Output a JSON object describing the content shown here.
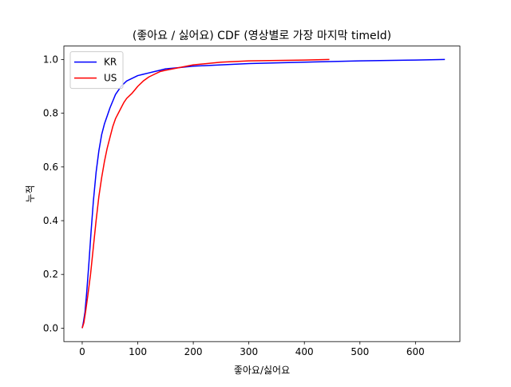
{
  "chart_data": {
    "type": "line",
    "title": "(좋아요 / 싫어요) CDF (영상별로 가장 마지막 timeId)",
    "xlabel": "좋아요/싫어요",
    "ylabel": "누적",
    "xlim": [
      -33,
      680
    ],
    "ylim": [
      -0.05,
      1.05
    ],
    "xticks": [
      0,
      100,
      200,
      300,
      400,
      500,
      600
    ],
    "yticks": [
      0.0,
      0.2,
      0.4,
      0.6,
      0.8,
      1.0
    ],
    "xtick_labels": [
      "0",
      "100",
      "200",
      "300",
      "400",
      "500",
      "600"
    ],
    "ytick_labels": [
      "0.0",
      "0.2",
      "0.4",
      "0.6",
      "0.8",
      "1.0"
    ],
    "legend_position": "upper-left",
    "series": [
      {
        "name": "KR",
        "color": "#0000ff",
        "points": [
          [
            0,
            0.0
          ],
          [
            2,
            0.02
          ],
          [
            5,
            0.06
          ],
          [
            8,
            0.13
          ],
          [
            12,
            0.24
          ],
          [
            16,
            0.36
          ],
          [
            20,
            0.47
          ],
          [
            25,
            0.58
          ],
          [
            30,
            0.66
          ],
          [
            35,
            0.72
          ],
          [
            40,
            0.76
          ],
          [
            45,
            0.79
          ],
          [
            50,
            0.82
          ],
          [
            55,
            0.845
          ],
          [
            60,
            0.87
          ],
          [
            65,
            0.885
          ],
          [
            70,
            0.9
          ],
          [
            75,
            0.91
          ],
          [
            80,
            0.92
          ],
          [
            90,
            0.93
          ],
          [
            100,
            0.94
          ],
          [
            110,
            0.945
          ],
          [
            120,
            0.95
          ],
          [
            130,
            0.955
          ],
          [
            140,
            0.96
          ],
          [
            150,
            0.965
          ],
          [
            175,
            0.97
          ],
          [
            200,
            0.975
          ],
          [
            250,
            0.98
          ],
          [
            300,
            0.985
          ],
          [
            400,
            0.99
          ],
          [
            500,
            0.995
          ],
          [
            600,
            0.998
          ],
          [
            653,
            1.0
          ]
        ]
      },
      {
        "name": "US",
        "color": "#ff0000",
        "points": [
          [
            0,
            0.0
          ],
          [
            3,
            0.02
          ],
          [
            6,
            0.06
          ],
          [
            10,
            0.12
          ],
          [
            15,
            0.2
          ],
          [
            20,
            0.3
          ],
          [
            25,
            0.4
          ],
          [
            30,
            0.49
          ],
          [
            35,
            0.56
          ],
          [
            40,
            0.62
          ],
          [
            45,
            0.67
          ],
          [
            50,
            0.71
          ],
          [
            55,
            0.75
          ],
          [
            60,
            0.78
          ],
          [
            65,
            0.8
          ],
          [
            70,
            0.82
          ],
          [
            75,
            0.84
          ],
          [
            80,
            0.855
          ],
          [
            90,
            0.875
          ],
          [
            100,
            0.9
          ],
          [
            110,
            0.92
          ],
          [
            120,
            0.935
          ],
          [
            130,
            0.945
          ],
          [
            140,
            0.955
          ],
          [
            150,
            0.96
          ],
          [
            175,
            0.97
          ],
          [
            200,
            0.98
          ],
          [
            250,
            0.99
          ],
          [
            300,
            0.995
          ],
          [
            400,
            0.998
          ],
          [
            445,
            1.0
          ]
        ]
      }
    ]
  }
}
